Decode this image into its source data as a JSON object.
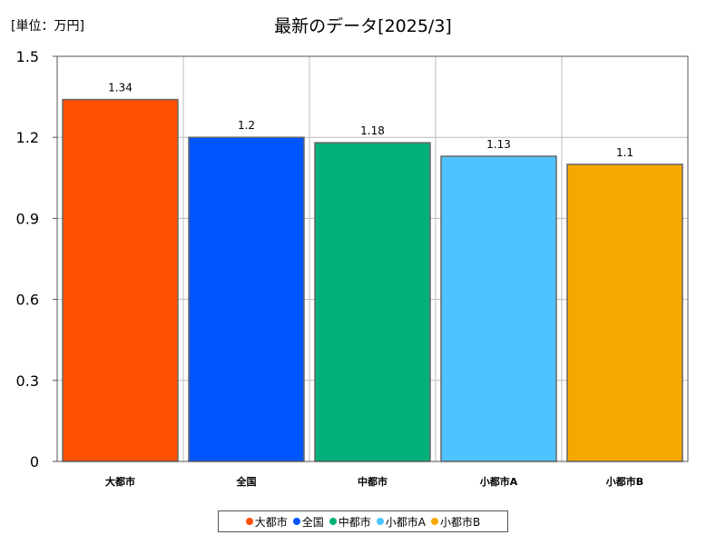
{
  "unit_label": "[単位：万円]",
  "chart_data": {
    "type": "bar",
    "title": "最新のデータ[2025/3]",
    "categories": [
      "大都市",
      "全国",
      "中都市",
      "小都市A",
      "小都市B"
    ],
    "values": [
      1.34,
      1.2,
      1.18,
      1.13,
      1.1
    ],
    "data_labels": [
      "1.34",
      "1.2",
      "1.18",
      "1.13",
      "1.1"
    ],
    "colors": [
      "#ff4f00",
      "#0055ff",
      "#00b07a",
      "#4fc3ff",
      "#f5a800"
    ],
    "ylim": [
      0,
      1.5
    ],
    "yticks": [
      "0",
      "0.3",
      "0.6",
      "0.9",
      "1.2",
      "1.5"
    ],
    "grid": true,
    "legend_position": "bottom"
  },
  "legend": [
    {
      "label": "大都市",
      "color": "#ff4f00"
    },
    {
      "label": "全国",
      "color": "#0055ff"
    },
    {
      "label": "中都市",
      "color": "#00b07a"
    },
    {
      "label": "小都市A",
      "color": "#4fc3ff"
    },
    {
      "label": "小都市B",
      "color": "#f5a800"
    }
  ]
}
